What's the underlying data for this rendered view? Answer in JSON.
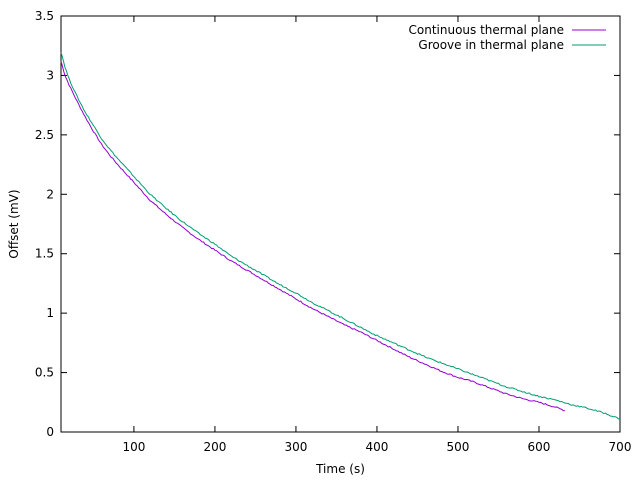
{
  "chart_data": {
    "type": "line",
    "title": "",
    "xlabel": "Time (s)",
    "ylabel": "Offset (mV)",
    "xlim": [
      10,
      700
    ],
    "ylim": [
      0,
      3.5
    ],
    "x_ticks": [
      100,
      200,
      300,
      400,
      500,
      600,
      700
    ],
    "y_ticks": [
      0,
      0.5,
      1,
      1.5,
      2,
      2.5,
      3,
      3.5
    ],
    "x_tick_labels": [
      "100",
      "200",
      "300",
      "400",
      "500",
      "600",
      "700"
    ],
    "y_tick_labels": [
      "0",
      "0.5",
      "1",
      "1.5",
      "2",
      "2.5",
      "3",
      "3.5"
    ],
    "grid": false,
    "legend_position": "top-right",
    "series": [
      {
        "name": "Continuous thermal plane",
        "color": "#9400d3",
        "x": [
          10,
          15,
          20,
          30,
          40,
          50,
          60,
          70,
          80,
          100,
          120,
          140,
          160,
          180,
          200,
          220,
          240,
          260,
          280,
          300,
          320,
          340,
          360,
          380,
          400,
          420,
          440,
          460,
          480,
          500,
          520,
          540,
          560,
          580,
          600,
          620,
          632
        ],
        "y": [
          3.12,
          3.0,
          2.92,
          2.78,
          2.65,
          2.53,
          2.42,
          2.33,
          2.25,
          2.1,
          1.95,
          1.83,
          1.72,
          1.62,
          1.53,
          1.44,
          1.36,
          1.28,
          1.2,
          1.12,
          1.04,
          0.97,
          0.9,
          0.84,
          0.77,
          0.7,
          0.63,
          0.57,
          0.51,
          0.46,
          0.42,
          0.37,
          0.32,
          0.28,
          0.25,
          0.21,
          0.18
        ]
      },
      {
        "name": "Groove in thermal plane",
        "color": "#009e73",
        "x": [
          10,
          15,
          20,
          30,
          40,
          50,
          60,
          70,
          80,
          100,
          120,
          140,
          160,
          180,
          200,
          220,
          240,
          260,
          280,
          300,
          320,
          340,
          360,
          380,
          400,
          420,
          440,
          460,
          480,
          500,
          520,
          540,
          560,
          580,
          600,
          620,
          640,
          660,
          680,
          700
        ],
        "y": [
          3.2,
          3.07,
          2.97,
          2.82,
          2.69,
          2.58,
          2.47,
          2.38,
          2.3,
          2.15,
          2.0,
          1.88,
          1.77,
          1.67,
          1.58,
          1.48,
          1.4,
          1.32,
          1.24,
          1.17,
          1.09,
          1.02,
          0.95,
          0.88,
          0.81,
          0.75,
          0.69,
          0.63,
          0.58,
          0.53,
          0.48,
          0.43,
          0.38,
          0.34,
          0.3,
          0.27,
          0.23,
          0.2,
          0.16,
          0.11
        ]
      }
    ]
  }
}
